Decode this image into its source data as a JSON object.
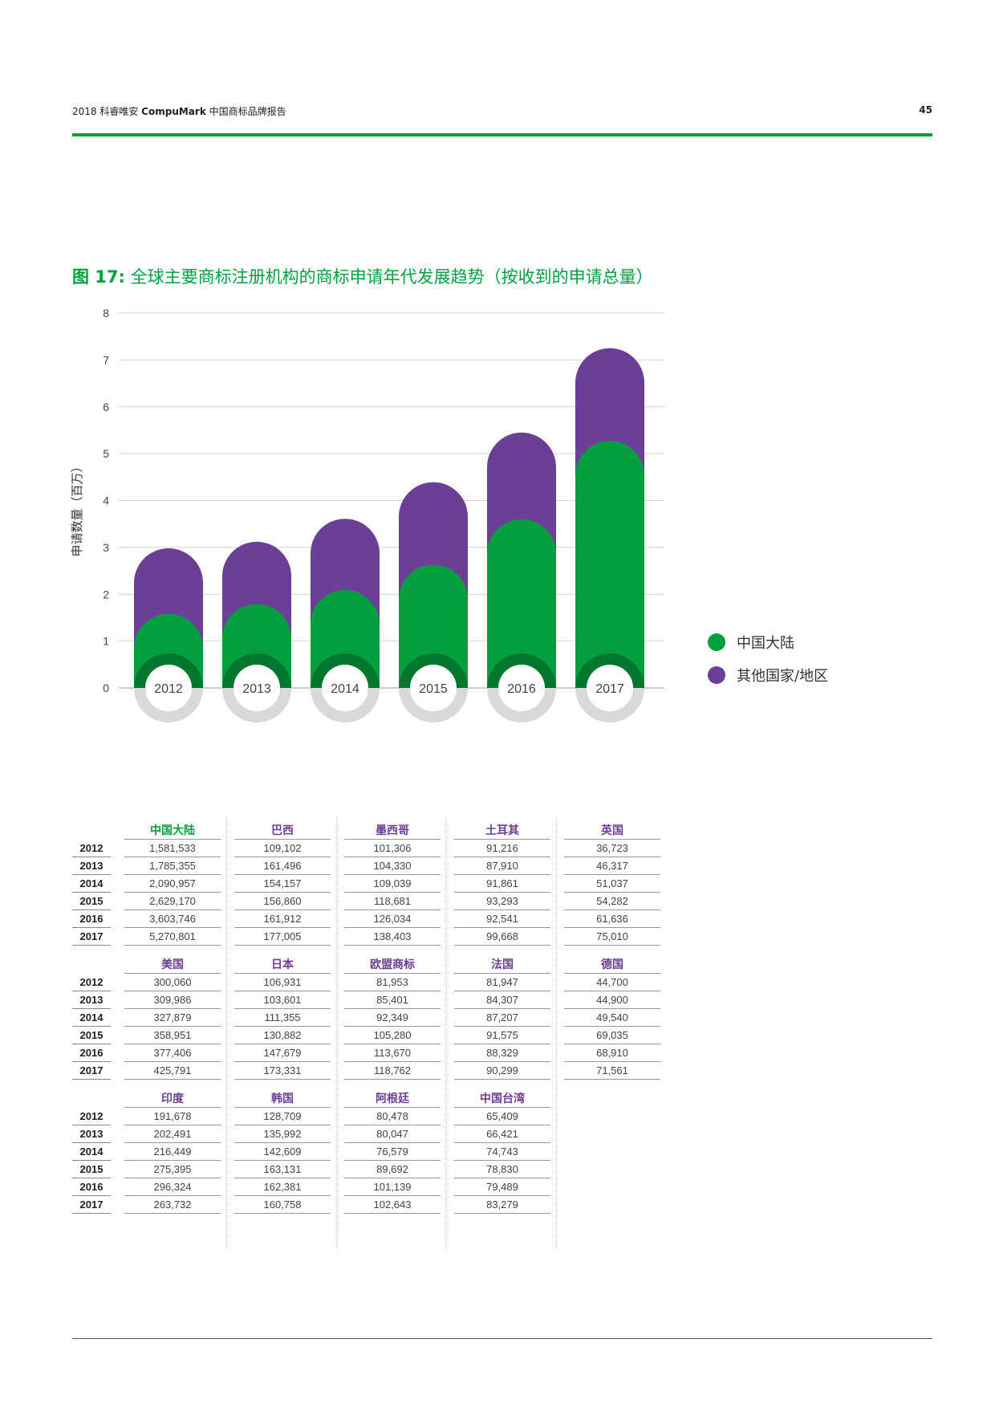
{
  "header": {
    "title_prefix": "2018 科睿唯安 ",
    "title_brand": "CompuMark",
    "title_suffix": " 中国商标品牌报告",
    "page_number": "45"
  },
  "figure": {
    "number": "图 17:",
    "caption": "全球主要商标注册机构的商标申请年代发展趋势（按收到的申请总量）"
  },
  "colors": {
    "green": "#00a03e",
    "purple": "#6b3f96",
    "dark_green": "#00772d",
    "gray_ring": "#d9d9d9"
  },
  "chart_data": {
    "type": "bar",
    "categories": [
      "2012",
      "2013",
      "2014",
      "2015",
      "2016",
      "2017"
    ],
    "ylabel": "申请数量（百万）",
    "ylim": [
      0,
      8
    ],
    "yticks": [
      "0",
      "1",
      "2",
      "3",
      "4",
      "5",
      "6",
      "7",
      "8"
    ],
    "series": [
      {
        "name": "中国大陆",
        "values": [
          1.58,
          1.79,
          2.09,
          2.63,
          3.6,
          5.27
        ]
      },
      {
        "name": "其他国家/地区",
        "values": [
          2.98,
          3.12,
          3.61,
          4.39,
          5.45,
          7.25
        ]
      }
    ],
    "legend": "right"
  },
  "legend": [
    {
      "label": "中国大陆",
      "color": "#00a03e"
    },
    {
      "label": "其他国家/地区",
      "color": "#6b3f96"
    }
  ],
  "years": [
    "2012",
    "2013",
    "2014",
    "2015",
    "2016",
    "2017"
  ],
  "table_groups": [
    {
      "columns": [
        {
          "name": "中国大陆",
          "values": [
            "1,581,533",
            "1,785,355",
            "2,090,957",
            "2,629,170",
            "3,603,746",
            "5,270,801"
          ]
        },
        {
          "name": "巴西",
          "values": [
            "109,102",
            "161,496",
            "154,157",
            "156,860",
            "161,912",
            "177,005"
          ]
        },
        {
          "name": "墨西哥",
          "values": [
            "101,306",
            "104,330",
            "109,039",
            "118,681",
            "126,034",
            "138,403"
          ]
        },
        {
          "name": "土耳其",
          "values": [
            "91,216",
            "87,910",
            "91,861",
            "93,293",
            "92,541",
            "99,668"
          ]
        },
        {
          "name": "英国",
          "values": [
            "36,723",
            "46,317",
            "51,037",
            "54,282",
            "61,636",
            "75,010"
          ]
        }
      ]
    },
    {
      "columns": [
        {
          "name": "美国",
          "values": [
            "300,060",
            "309,986",
            "327,879",
            "358,951",
            "377,406",
            "425,791"
          ]
        },
        {
          "name": "日本",
          "values": [
            "106,931",
            "103,601",
            "111,355",
            "130,882",
            "147,679",
            "173,331"
          ]
        },
        {
          "name": "欧盟商标",
          "values": [
            "81,953",
            "85,401",
            "92,349",
            "105,280",
            "113,670",
            "118,762"
          ]
        },
        {
          "name": "法国",
          "values": [
            "81,947",
            "84,307",
            "87,207",
            "91,575",
            "88,329",
            "90,299"
          ]
        },
        {
          "name": "德国",
          "values": [
            "44,700",
            "44,900",
            "49,540",
            "69,035",
            "68,910",
            "71,561"
          ]
        }
      ]
    },
    {
      "columns": [
        {
          "name": "印度",
          "values": [
            "191,678",
            "202,491",
            "216,449",
            "275,395",
            "296,324",
            "263,732"
          ]
        },
        {
          "name": "韩国",
          "values": [
            "128,709",
            "135,992",
            "142,609",
            "163,131",
            "162,381",
            "160,758"
          ]
        },
        {
          "name": "阿根廷",
          "values": [
            "80,478",
            "80,047",
            "76,579",
            "89,692",
            "101,139",
            "102,643"
          ]
        },
        {
          "name": "中国台湾",
          "values": [
            "65,409",
            "66,421",
            "74,743",
            "78,830",
            "79,489",
            "83,279"
          ]
        }
      ]
    }
  ]
}
